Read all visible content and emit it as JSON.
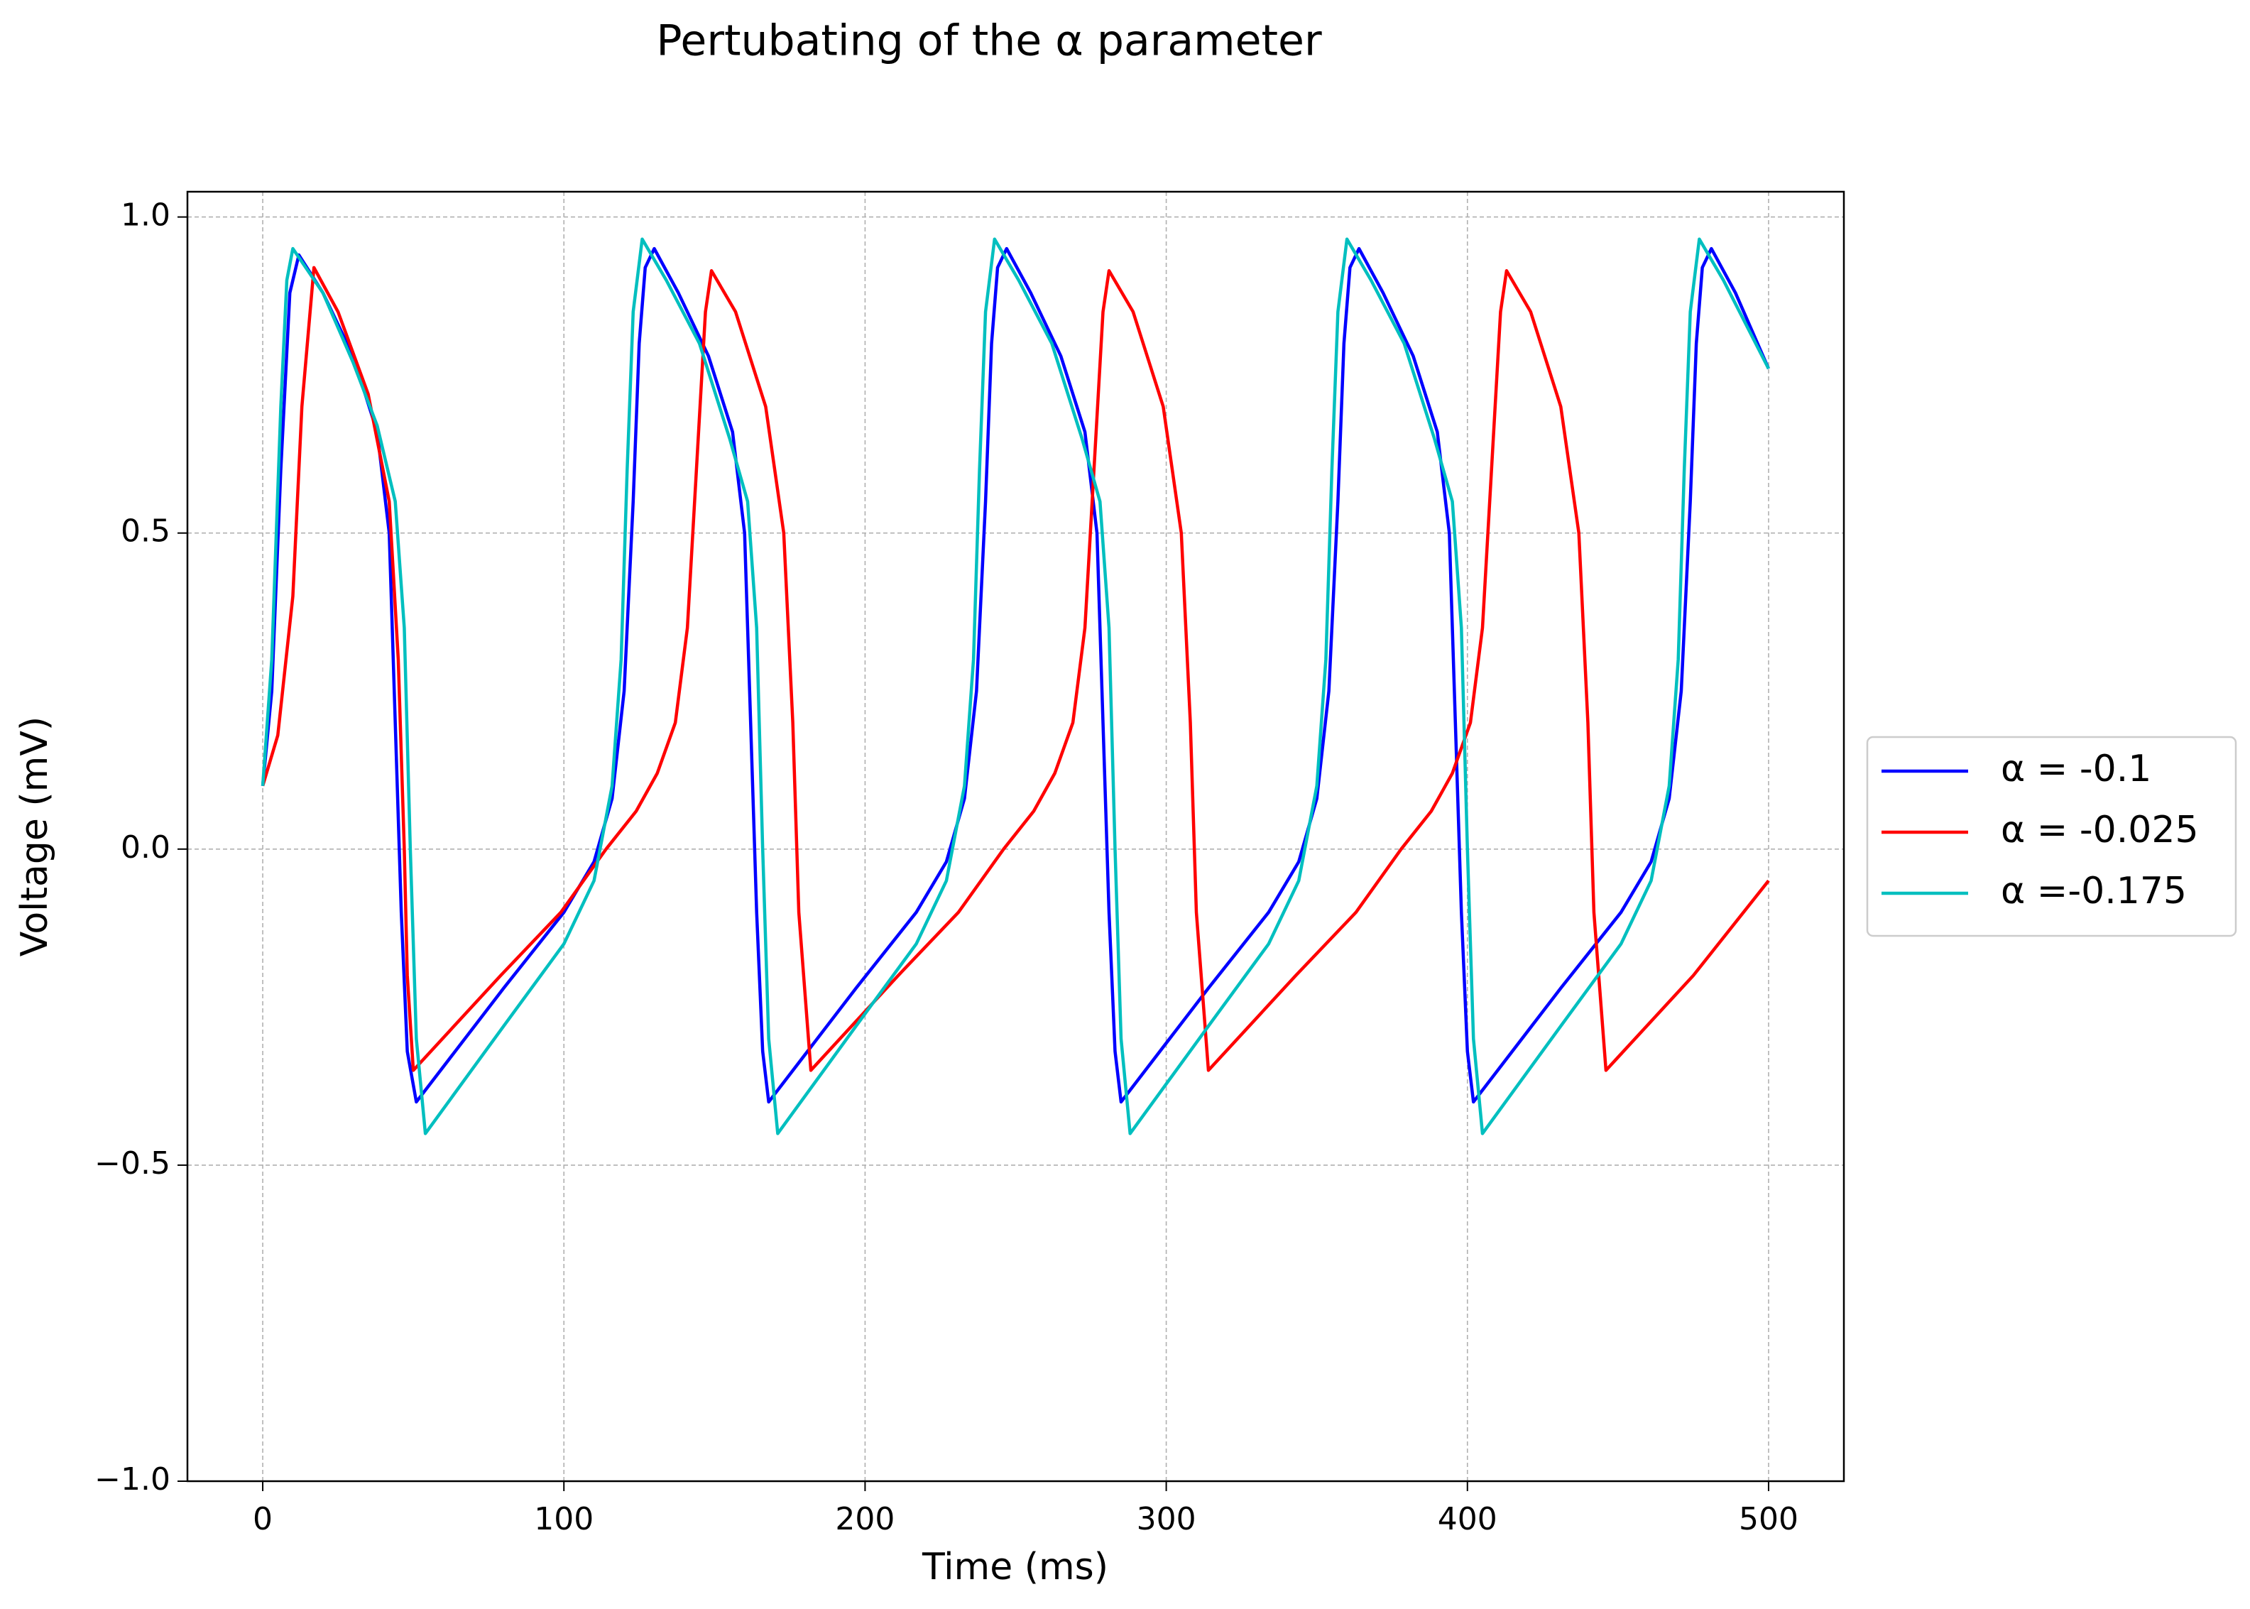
{
  "chart_data": {
    "type": "line",
    "title": "Pertubating of the α parameter",
    "xlabel": "Time (ms)",
    "ylabel": "Voltage (mV)",
    "xlim": [
      -25,
      525
    ],
    "xticks": [
      0,
      100,
      200,
      300,
      400,
      500
    ],
    "ylim": [
      -1.0,
      1.04
    ],
    "yticks": [
      {
        "value": -1.0,
        "label": "−1.0"
      },
      {
        "value": -0.5,
        "label": "−0.5"
      },
      {
        "value": 0.0,
        "label": "0.0"
      },
      0.5,
      {
        "value": 1.0,
        "label": "1.0"
      }
    ],
    "grid": true,
    "legend": "right",
    "series": [
      {
        "name": "α = -0.1",
        "color": "#0000ff",
        "x": [
          0,
          3,
          6,
          9,
          12,
          20,
          30,
          38,
          42,
          44,
          46,
          48,
          51,
          80,
          100,
          110,
          116,
          120,
          123,
          125,
          127,
          130,
          138,
          148,
          156,
          160,
          162,
          164,
          166,
          168,
          197,
          217,
          227,
          233,
          237,
          240,
          242,
          244,
          247,
          255,
          265,
          273,
          277,
          279,
          281,
          283,
          285,
          314,
          334,
          344,
          350,
          354,
          357,
          359,
          361,
          364,
          372,
          382,
          390,
          394,
          396,
          398,
          400,
          402,
          431,
          451,
          461,
          467,
          471,
          474,
          476,
          478,
          481,
          489,
          500
        ],
        "values": [
          0.1,
          0.25,
          0.6,
          0.88,
          0.94,
          0.88,
          0.78,
          0.66,
          0.5,
          0.2,
          -0.1,
          -0.32,
          -0.4,
          -0.22,
          -0.1,
          -0.02,
          0.08,
          0.25,
          0.55,
          0.8,
          0.92,
          0.95,
          0.88,
          0.78,
          0.66,
          0.5,
          0.2,
          -0.1,
          -0.32,
          -0.4,
          -0.22,
          -0.1,
          -0.02,
          0.08,
          0.25,
          0.55,
          0.8,
          0.92,
          0.95,
          0.88,
          0.78,
          0.66,
          0.5,
          0.2,
          -0.1,
          -0.32,
          -0.4,
          -0.22,
          -0.1,
          -0.02,
          0.08,
          0.25,
          0.55,
          0.8,
          0.92,
          0.95,
          0.88,
          0.78,
          0.66,
          0.5,
          0.2,
          -0.1,
          -0.32,
          -0.4,
          -0.22,
          -0.1,
          -0.02,
          0.08,
          0.25,
          0.55,
          0.8,
          0.92,
          0.95,
          0.88,
          0.76
        ]
      },
      {
        "name": "α = -0.025",
        "color": "#ff0000",
        "x": [
          0,
          5,
          10,
          13,
          17,
          25,
          35,
          42,
          45,
          47,
          48,
          50,
          79,
          99,
          114,
          124,
          131,
          137,
          141,
          144,
          147,
          149,
          157,
          167,
          173,
          176,
          178,
          182,
          211,
          231,
          246,
          256,
          263,
          269,
          273,
          276,
          279,
          281,
          289,
          299,
          305,
          308,
          310,
          314,
          343,
          363,
          378,
          388,
          395,
          401,
          405,
          408,
          411,
          413,
          421,
          431,
          437,
          440,
          442,
          446,
          475,
          500
        ],
        "values": [
          0.1,
          0.18,
          0.4,
          0.7,
          0.92,
          0.85,
          0.72,
          0.55,
          0.3,
          0.0,
          -0.2,
          -0.35,
          -0.2,
          -0.1,
          0.0,
          0.06,
          0.12,
          0.2,
          0.35,
          0.6,
          0.85,
          0.915,
          0.85,
          0.7,
          0.5,
          0.2,
          -0.1,
          -0.35,
          -0.2,
          -0.1,
          0.0,
          0.06,
          0.12,
          0.2,
          0.35,
          0.6,
          0.85,
          0.915,
          0.85,
          0.7,
          0.5,
          0.2,
          -0.1,
          -0.35,
          -0.2,
          -0.1,
          0.0,
          0.06,
          0.12,
          0.2,
          0.35,
          0.6,
          0.85,
          0.915,
          0.85,
          0.7,
          0.5,
          0.2,
          -0.1,
          -0.35,
          -0.2,
          -0.05
        ]
      },
      {
        "name": "α =-0.175",
        "color": "#00bfbf",
        "x": [
          0,
          3,
          6,
          8,
          10,
          20,
          30,
          38,
          44,
          47,
          49,
          51,
          54,
          80,
          100,
          110,
          116,
          119,
          121,
          123,
          126,
          134,
          145,
          155,
          161,
          164,
          166,
          168,
          171,
          197,
          217,
          227,
          233,
          236,
          238,
          240,
          243,
          251,
          262,
          272,
          278,
          281,
          283,
          285,
          288,
          314,
          334,
          344,
          350,
          353,
          355,
          357,
          360,
          368,
          379,
          389,
          395,
          398,
          400,
          402,
          405,
          431,
          451,
          461,
          467,
          470,
          472,
          474,
          477,
          485,
          500
        ],
        "values": [
          0.1,
          0.3,
          0.7,
          0.9,
          0.95,
          0.88,
          0.77,
          0.67,
          0.55,
          0.35,
          0.0,
          -0.3,
          -0.45,
          -0.28,
          -0.15,
          -0.05,
          0.1,
          0.3,
          0.6,
          0.85,
          0.965,
          0.9,
          0.8,
          0.65,
          0.55,
          0.35,
          0.0,
          -0.3,
          -0.45,
          -0.28,
          -0.15,
          -0.05,
          0.1,
          0.3,
          0.6,
          0.85,
          0.965,
          0.9,
          0.8,
          0.65,
          0.55,
          0.35,
          0.0,
          -0.3,
          -0.45,
          -0.28,
          -0.15,
          -0.05,
          0.1,
          0.3,
          0.6,
          0.85,
          0.965,
          0.9,
          0.8,
          0.65,
          0.55,
          0.35,
          0.0,
          -0.3,
          -0.45,
          -0.28,
          -0.15,
          -0.05,
          0.1,
          0.3,
          0.6,
          0.85,
          0.965,
          0.9,
          0.76
        ]
      }
    ]
  }
}
